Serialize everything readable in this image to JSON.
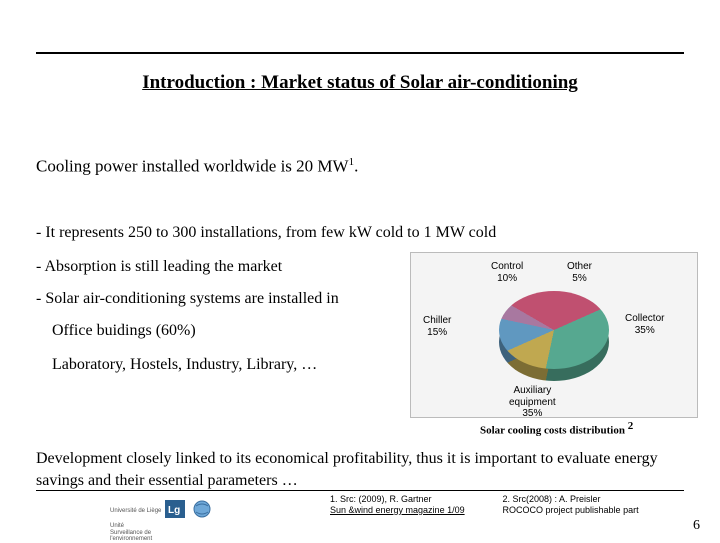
{
  "title": "Introduction : Market status of Solar air-conditioning",
  "subtitle_pre": "Cooling power installed worldwide is 20 MW",
  "subtitle_sup": "1",
  "subtitle_post": ".",
  "bullets": {
    "b1": "- It represents 250 to 300 installations, from few kW cold to 1 MW cold",
    "b2": "- Absorption is still leading the market",
    "b3": "- Solar air-conditioning systems are installed in"
  },
  "indents": {
    "i1": "Office buidings (60%)",
    "i2": "Laboratory, Hostels, Industry, Library, …"
  },
  "chart": {
    "caption": "Solar cooling costs distribution",
    "caption_sup": "2",
    "type": "pie",
    "background_color": "#f4f4f4",
    "slices": [
      {
        "label": "Collector",
        "value": 35,
        "color": "#c05070",
        "label_pos": "right"
      },
      {
        "label": "Auxiliary\nequipment",
        "value": 35,
        "color": "#56a890",
        "label_pos": "bottom"
      },
      {
        "label": "Chiller",
        "value": 15,
        "color": "#c0a850",
        "label_pos": "left"
      },
      {
        "label": "Control",
        "value": 10,
        "color": "#6098c0",
        "label_pos": "top-left"
      },
      {
        "label": "Other",
        "value": 5,
        "color": "#a878a0",
        "label_pos": "top-right"
      }
    ]
  },
  "development": "Development closely linked to its economical profitability, thus it is important to evaluate energy savings and their essential parameters …",
  "footnotes": {
    "f1a": "1. Src: (2009), R. Gartner",
    "f1b": "Sun &wind energy magazine 1/09",
    "f2a": "2. Src(2008) : A. Preisler",
    "f2b": "ROCOCO project publishable part"
  },
  "logos": {
    "uliege": "Université de Liège",
    "env": "Unité\nSurveillance de\nl'environnement"
  },
  "pagenum": "6"
}
